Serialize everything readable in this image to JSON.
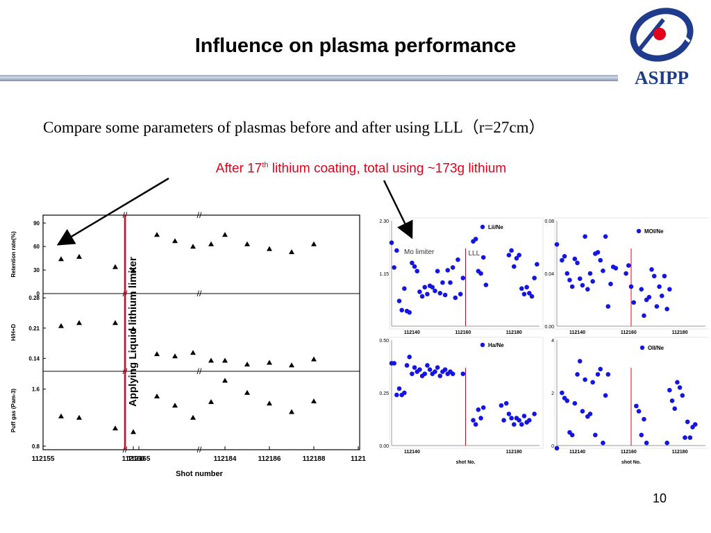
{
  "slide": {
    "title": "Influence on plasma performance",
    "logo_text": "ASIPP",
    "subtitle": "Compare some parameters of plasmas before and after using LLL（r=27cm）",
    "note_prefix": "After 17",
    "note_sup": "th",
    "note_suffix": " lithium coating, total using ~173g lithium",
    "page_number": "10"
  },
  "colors": {
    "marker": "#1515e0",
    "highlight": "#e3001b",
    "title_bar": "#9aa9bf",
    "logo": "#1f3c8c"
  },
  "chart_data": [
    {
      "type": "scatter",
      "xlabel": "Shot number",
      "x_ticks": [
        "112155",
        "112160",
        "112165",
        "112184",
        "112186",
        "112188",
        "1121"
      ],
      "marker": "triangle",
      "vline_label": "Applying Liquid lithium limiter",
      "panels": [
        {
          "ylabel": "Retention rate(%)",
          "ylim": [
            0,
            100
          ],
          "yticks": [
            "90",
            "60",
            "30",
            "0"
          ],
          "points": [
            [
              112156,
              44
            ],
            [
              112157,
              47
            ],
            [
              112159,
              34
            ],
            [
              112160,
              29
            ],
            [
              112166,
              75
            ],
            [
              112167,
              67
            ],
            [
              112168,
              60
            ],
            [
              112169,
              63
            ],
            [
              112184,
              75
            ],
            [
              112185,
              63
            ],
            [
              112186,
              57
            ],
            [
              112187,
              53
            ],
            [
              112188,
              63
            ]
          ]
        },
        {
          "ylabel": "H/H+D",
          "ylim": [
            0.11,
            0.29
          ],
          "yticks": [
            "0.28",
            "0.21",
            "0.14"
          ],
          "points": [
            [
              112156,
              0.215
            ],
            [
              112157,
              0.222
            ],
            [
              112159,
              0.222
            ],
            [
              112160,
              0.208
            ],
            [
              112166,
              0.15
            ],
            [
              112167,
              0.145
            ],
            [
              112168,
              0.153
            ],
            [
              112169,
              0.135
            ],
            [
              112184,
              0.135
            ],
            [
              112185,
              0.126
            ],
            [
              112186,
              0.13
            ],
            [
              112187,
              0.124
            ],
            [
              112188,
              0.138
            ]
          ]
        },
        {
          "ylabel": "Puff gas (Pam-3)",
          "ylim": [
            0.75,
            1.85
          ],
          "yticks": [
            "1.6",
            "0.8"
          ],
          "points": [
            [
              112156,
              1.22
            ],
            [
              112157,
              1.2
            ],
            [
              112159,
              1.05
            ],
            [
              112160,
              1.0
            ],
            [
              112166,
              1.5
            ],
            [
              112167,
              1.37
            ],
            [
              112168,
              1.2
            ],
            [
              112169,
              1.42
            ],
            [
              112184,
              1.72
            ],
            [
              112185,
              1.55
            ],
            [
              112186,
              1.4
            ],
            [
              112187,
              1.28
            ],
            [
              112188,
              1.43
            ]
          ]
        }
      ]
    },
    {
      "type": "scatter",
      "series_name": "Lii/Ne",
      "ylim": [
        0,
        2.3
      ],
      "yticks": [
        "2.30",
        "1.15"
      ],
      "xlim": [
        112132,
        112190
      ],
      "xticks": [
        "112140",
        "112160",
        "112180"
      ],
      "vline_x": 112161,
      "region_labels": [
        "Mo limiter",
        "LLL"
      ],
      "points": [
        [
          112132,
          1.82
        ],
        [
          112133,
          1.28
        ],
        [
          112134,
          1.65
        ],
        [
          112135,
          0.55
        ],
        [
          112136,
          0.35
        ],
        [
          112137,
          0.82
        ],
        [
          112138,
          0.33
        ],
        [
          112139,
          0.3
        ],
        [
          112140,
          1.38
        ],
        [
          112141,
          1.3
        ],
        [
          112142,
          1.2
        ],
        [
          112143,
          0.75
        ],
        [
          112144,
          0.65
        ],
        [
          112145,
          0.85
        ],
        [
          112146,
          0.7
        ],
        [
          112147,
          0.88
        ],
        [
          112148,
          0.85
        ],
        [
          112149,
          0.77
        ],
        [
          112150,
          1.2
        ],
        [
          112151,
          0.72
        ],
        [
          112152,
          0.95
        ],
        [
          112153,
          0.68
        ],
        [
          112154,
          1.22
        ],
        [
          112155,
          0.95
        ],
        [
          112156,
          1.28
        ],
        [
          112157,
          0.62
        ],
        [
          112158,
          1.45
        ],
        [
          112159,
          0.7
        ],
        [
          112160,
          1.05
        ],
        [
          112164,
          1.85
        ],
        [
          112165,
          1.9
        ],
        [
          112166,
          1.2
        ],
        [
          112167,
          1.15
        ],
        [
          112168,
          1.5
        ],
        [
          112169,
          0.9
        ],
        [
          112178,
          1.55
        ],
        [
          112179,
          1.65
        ],
        [
          112180,
          1.3
        ],
        [
          112181,
          1.48
        ],
        [
          112182,
          1.55
        ],
        [
          112183,
          0.82
        ],
        [
          112184,
          0.7
        ],
        [
          112185,
          0.85
        ],
        [
          112186,
          0.72
        ],
        [
          112187,
          0.65
        ],
        [
          112188,
          1.05
        ],
        [
          112189,
          1.35
        ]
      ]
    },
    {
      "type": "scatter",
      "series_name": "MOI/Ne",
      "ylim": [
        0,
        0.08
      ],
      "yticks": [
        "0.08",
        "0.04",
        "0.00"
      ],
      "xlim": [
        112132,
        112190
      ],
      "xticks": [
        "112140",
        "112160",
        "112180"
      ],
      "vline_x": 112161,
      "points": [
        [
          112132,
          0.062
        ],
        [
          112134,
          0.05
        ],
        [
          112135,
          0.053
        ],
        [
          112136,
          0.04
        ],
        [
          112137,
          0.035
        ],
        [
          112138,
          0.03
        ],
        [
          112139,
          0.051
        ],
        [
          112140,
          0.048
        ],
        [
          112141,
          0.036
        ],
        [
          112142,
          0.031
        ],
        [
          112143,
          0.068
        ],
        [
          112144,
          0.028
        ],
        [
          112145,
          0.04
        ],
        [
          112146,
          0.034
        ],
        [
          112147,
          0.055
        ],
        [
          112148,
          0.056
        ],
        [
          112149,
          0.05
        ],
        [
          112150,
          0.042
        ],
        [
          112151,
          0.068
        ],
        [
          112152,
          0.015
        ],
        [
          112153,
          0.032
        ],
        [
          112154,
          0.045
        ],
        [
          112155,
          0.044
        ],
        [
          112159,
          0.04
        ],
        [
          112160,
          0.046
        ],
        [
          112161,
          0.03
        ],
        [
          112162,
          0.018
        ],
        [
          112165,
          0.028
        ],
        [
          112166,
          0.008
        ],
        [
          112167,
          0.02
        ],
        [
          112168,
          0.022
        ],
        [
          112169,
          0.043
        ],
        [
          112170,
          0.038
        ],
        [
          112171,
          0.015
        ],
        [
          112172,
          0.03
        ],
        [
          112173,
          0.023
        ],
        [
          112174,
          0.038
        ],
        [
          112175,
          0.013
        ],
        [
          112176,
          0.028
        ]
      ]
    },
    {
      "type": "scatter",
      "series_name": "Ha/Ne",
      "xlabel": "shot No.",
      "ylim": [
        0,
        0.5
      ],
      "yticks": [
        "0.50",
        "0.25",
        "0.00"
      ],
      "xlim": [
        112132,
        112190
      ],
      "xticks": [
        "112140",
        "112180"
      ],
      "vline_x": 112161,
      "points": [
        [
          112132,
          0.39
        ],
        [
          112133,
          0.39
        ],
        [
          112134,
          0.24
        ],
        [
          112135,
          0.27
        ],
        [
          112136,
          0.24
        ],
        [
          112137,
          0.25
        ],
        [
          112138,
          0.38
        ],
        [
          112139,
          0.42
        ],
        [
          112140,
          0.34
        ],
        [
          112141,
          0.37
        ],
        [
          112142,
          0.35
        ],
        [
          112143,
          0.36
        ],
        [
          112144,
          0.33
        ],
        [
          112145,
          0.34
        ],
        [
          112146,
          0.38
        ],
        [
          112147,
          0.36
        ],
        [
          112148,
          0.34
        ],
        [
          112149,
          0.35
        ],
        [
          112150,
          0.37
        ],
        [
          112151,
          0.33
        ],
        [
          112152,
          0.35
        ],
        [
          112153,
          0.36
        ],
        [
          112154,
          0.34
        ],
        [
          112155,
          0.35
        ],
        [
          112156,
          0.34
        ],
        [
          112160,
          0.34
        ],
        [
          112164,
          0.12
        ],
        [
          112165,
          0.1
        ],
        [
          112166,
          0.17
        ],
        [
          112167,
          0.13
        ],
        [
          112168,
          0.18
        ],
        [
          112175,
          0.19
        ],
        [
          112176,
          0.12
        ],
        [
          112177,
          0.2
        ],
        [
          112178,
          0.15
        ],
        [
          112179,
          0.13
        ],
        [
          112180,
          0.1
        ],
        [
          112181,
          0.13
        ],
        [
          112182,
          0.12
        ],
        [
          112183,
          0.1
        ],
        [
          112184,
          0.14
        ],
        [
          112185,
          0.11
        ],
        [
          112186,
          0.12
        ],
        [
          112188,
          0.15
        ]
      ]
    },
    {
      "type": "scatter",
      "series_name": "OII/Ne",
      "xlabel": "shot No.",
      "ylim": [
        0,
        4
      ],
      "yticks": [
        "4",
        "2",
        "0"
      ],
      "xlim": [
        112132,
        112190
      ],
      "xticks": [
        "112140",
        "112160",
        "112180"
      ],
      "vline_x": 112161,
      "points": [
        [
          112132,
          -0.1
        ],
        [
          112134,
          2.0
        ],
        [
          112135,
          1.8
        ],
        [
          112136,
          1.7
        ],
        [
          112137,
          0.5
        ],
        [
          112138,
          0.4
        ],
        [
          112139,
          1.6
        ],
        [
          112140,
          2.7
        ],
        [
          112141,
          3.2
        ],
        [
          112142,
          1.3
        ],
        [
          112143,
          2.5
        ],
        [
          112144,
          1.1
        ],
        [
          112145,
          1.2
        ],
        [
          112146,
          2.4
        ],
        [
          112147,
          0.4
        ],
        [
          112148,
          2.7
        ],
        [
          112149,
          2.9
        ],
        [
          112150,
          0.1
        ],
        [
          112151,
          1.9
        ],
        [
          112152,
          2.7
        ],
        [
          112163,
          1.5
        ],
        [
          112164,
          1.3
        ],
        [
          112165,
          0.4
        ],
        [
          112166,
          1.0
        ],
        [
          112167,
          0.1
        ],
        [
          112175,
          0.1
        ],
        [
          112176,
          2.1
        ],
        [
          112177,
          1.7
        ],
        [
          112178,
          1.4
        ],
        [
          112179,
          2.4
        ],
        [
          112180,
          2.2
        ],
        [
          112181,
          1.9
        ],
        [
          112182,
          0.3
        ],
        [
          112183,
          0.9
        ],
        [
          112184,
          0.3
        ],
        [
          112185,
          0.7
        ],
        [
          112186,
          0.8
        ]
      ]
    }
  ]
}
